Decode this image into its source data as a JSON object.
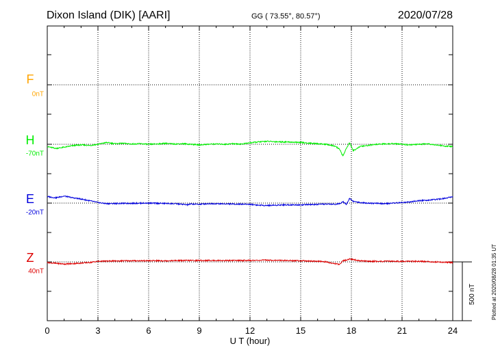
{
  "header": {
    "station": "Dixon Island (DIK)  [AARI]",
    "coords": "GG ( 73.55°,  80.57°)",
    "date": "2020/07/28"
  },
  "side_note": "Plotted at 2020/08/28 01:35 UT",
  "colors": {
    "F": "#ffa500",
    "H": "#00ee00",
    "E": "#0000dd",
    "Z": "#dd0000",
    "grid": "#000000"
  },
  "chart_data": {
    "type": "line",
    "xlabel": "U T (hour)",
    "xlim": [
      0,
      24
    ],
    "x_ticks": [
      "0",
      "3",
      "6",
      "9",
      "12",
      "15",
      "18",
      "21",
      "24"
    ],
    "scale_bar_label": "500 nT",
    "y_units": "nT, per-trace scale 500 nT per bar; each trace offset from its baseline",
    "series": [
      {
        "name": "F",
        "baseline_label": "0nT",
        "hours": [],
        "values": []
      },
      {
        "name": "H",
        "baseline_label": "-70nT",
        "hours": [
          0,
          0.5,
          1,
          1.5,
          2,
          2.5,
          3,
          3.5,
          4,
          4.5,
          5,
          5.5,
          6,
          6.5,
          7,
          7.5,
          8,
          8.5,
          9,
          9.5,
          10,
          10.5,
          11,
          11.5,
          12,
          12.5,
          13,
          13.5,
          14,
          14.5,
          15,
          15.5,
          16,
          16.5,
          17,
          17.3,
          17.5,
          17.7,
          17.9,
          18.1,
          18.5,
          19,
          19.5,
          20,
          20.5,
          21,
          21.5,
          22,
          22.5,
          23,
          23.5,
          24
        ],
        "values": [
          -20,
          -35,
          -25,
          -12,
          -5,
          -10,
          0,
          15,
          5,
          8,
          2,
          5,
          0,
          3,
          8,
          2,
          5,
          0,
          -5,
          0,
          3,
          0,
          5,
          2,
          12,
          20,
          25,
          22,
          20,
          18,
          15,
          10,
          5,
          0,
          -15,
          -40,
          -100,
          -35,
          15,
          -55,
          -20,
          -10,
          0,
          3,
          5,
          0,
          -5,
          0,
          5,
          -5,
          -15,
          -20
        ]
      },
      {
        "name": "E",
        "baseline_label": "-20nT",
        "hours": [
          0,
          0.5,
          1,
          1.5,
          2,
          2.5,
          3,
          3.5,
          4,
          5,
          6,
          7,
          7.5,
          8,
          8.3,
          8.5,
          9,
          9.5,
          10,
          11,
          12,
          12.5,
          13,
          14,
          15,
          16,
          16.5,
          17,
          17.3,
          17.5,
          17.7,
          17.9,
          18.1,
          18.5,
          19,
          20,
          21,
          21.5,
          22,
          22.5,
          23,
          23.5,
          24
        ],
        "values": [
          55,
          45,
          60,
          45,
          35,
          20,
          5,
          -5,
          -3,
          -2,
          0,
          -3,
          -5,
          -10,
          -15,
          -8,
          -10,
          -5,
          -5,
          -8,
          -10,
          -18,
          -20,
          -15,
          -15,
          -12,
          -8,
          -10,
          -5,
          15,
          -10,
          40,
          15,
          5,
          0,
          -5,
          5,
          10,
          20,
          25,
          30,
          40,
          55
        ]
      },
      {
        "name": "Z",
        "baseline_label": "40nT",
        "hours": [
          0,
          0.5,
          1,
          1.5,
          2,
          2.5,
          3,
          4,
          5,
          6,
          7,
          8,
          9,
          10,
          11,
          12,
          13,
          14,
          15,
          16,
          16.5,
          17,
          17.3,
          17.5,
          17.7,
          17.9,
          18.1,
          18.5,
          19,
          20,
          21,
          22,
          23,
          24
        ],
        "values": [
          -5,
          -12,
          -18,
          -15,
          -10,
          -5,
          5,
          8,
          10,
          10,
          10,
          12,
          12,
          12,
          12,
          12,
          15,
          12,
          10,
          5,
          0,
          -15,
          -20,
          10,
          15,
          25,
          20,
          10,
          5,
          5,
          5,
          5,
          0,
          -5
        ]
      }
    ]
  }
}
